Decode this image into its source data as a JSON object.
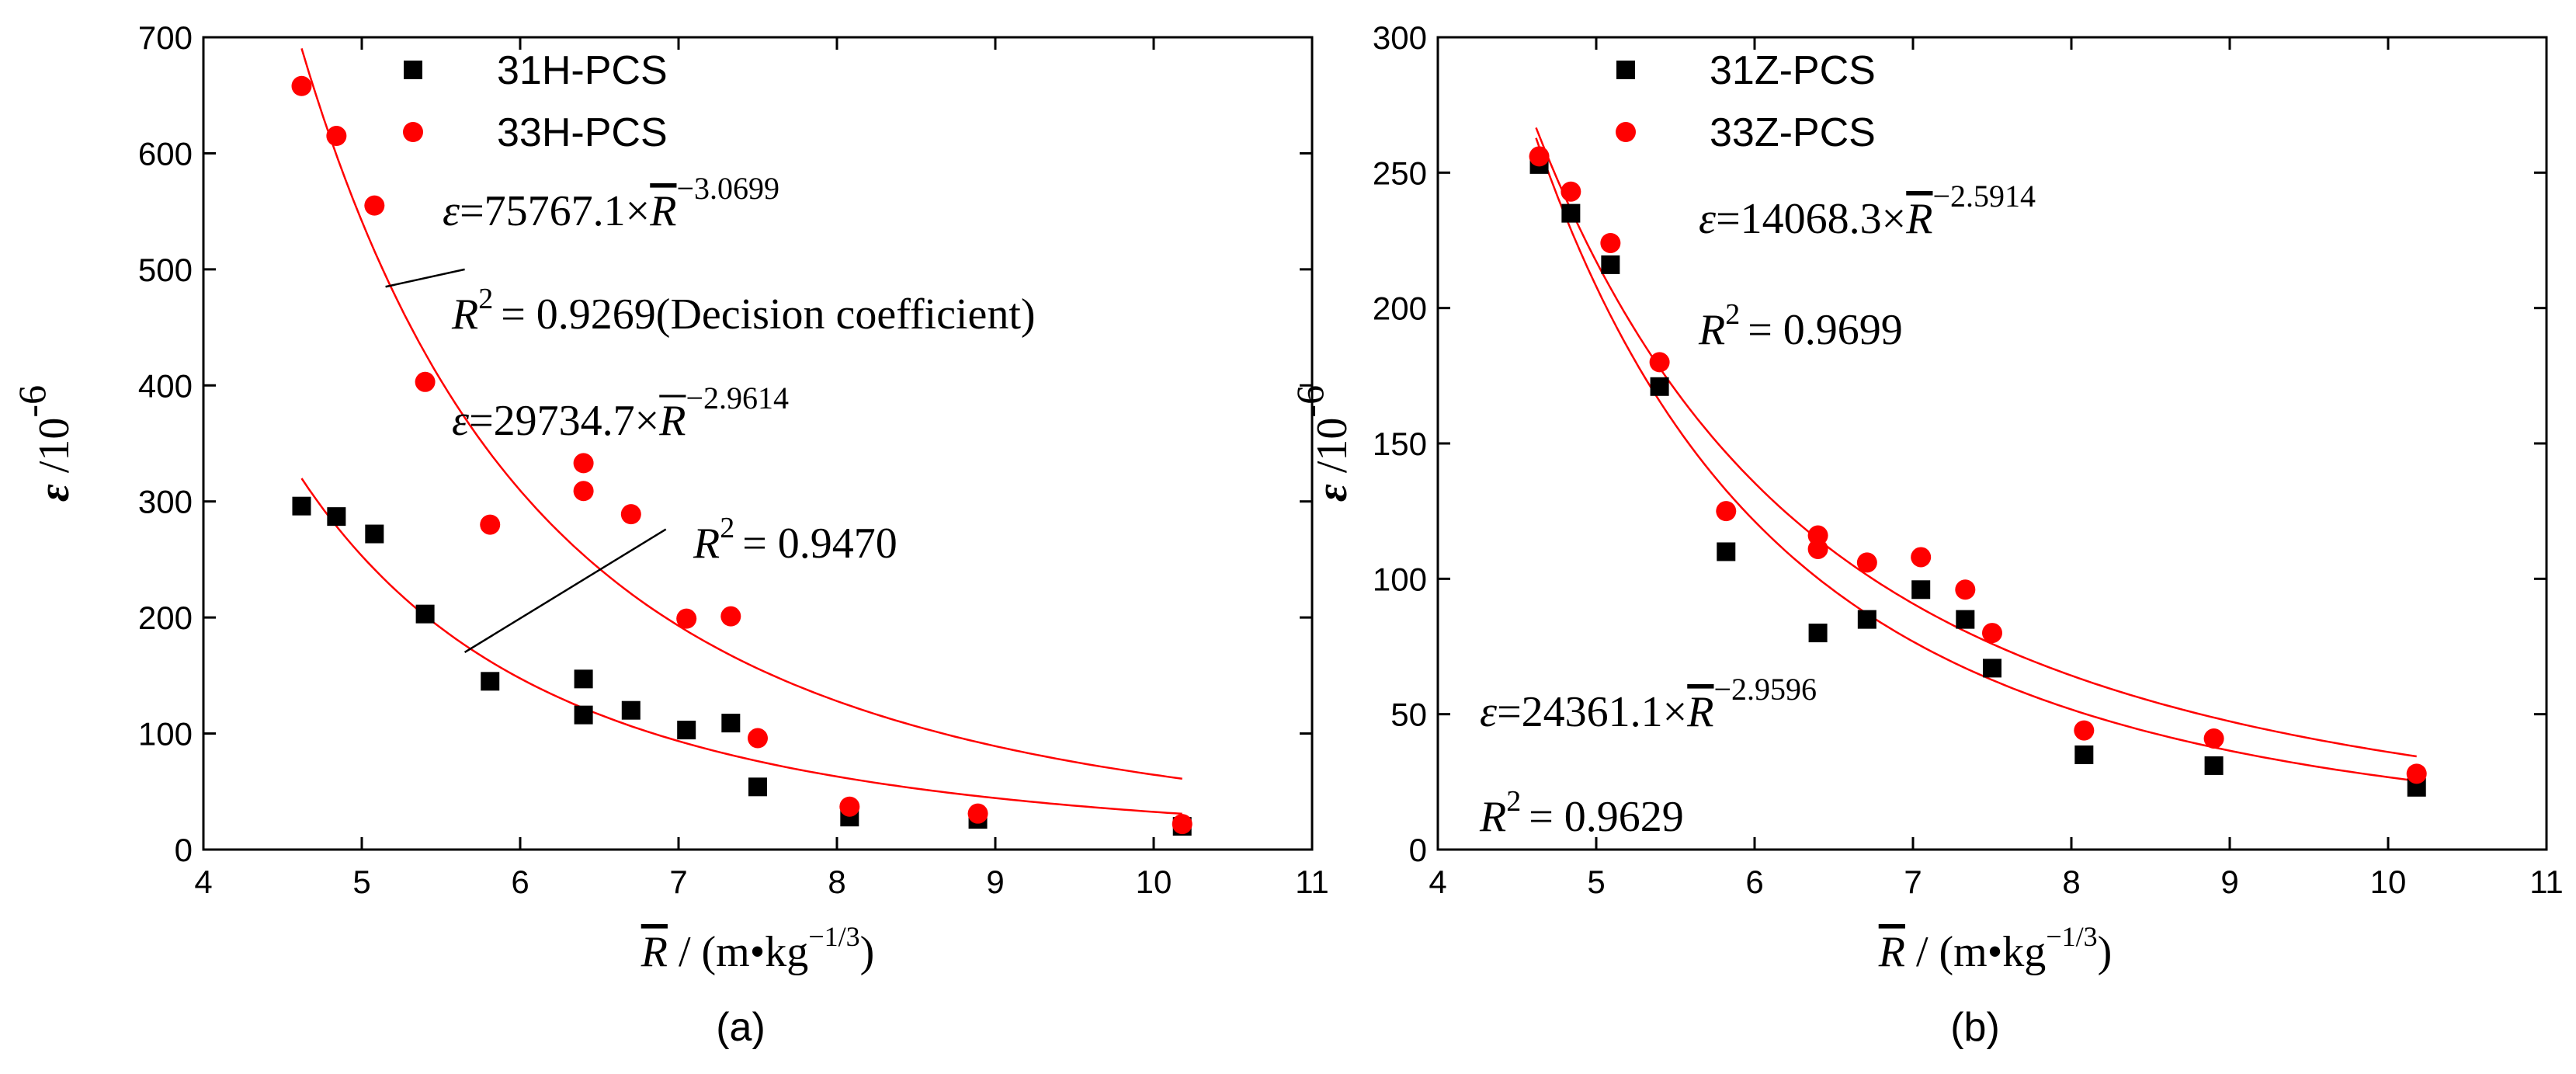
{
  "chart_data": [
    {
      "type": "scatter",
      "panel_label": "(a)",
      "xlabel": {
        "symbol": "R",
        "unit": " / (m•kg",
        "exp": "−1/3",
        "close": ")"
      },
      "ylabel": {
        "symbol": "ε",
        "unit": " /10",
        "exp": "-6"
      },
      "xlim": [
        4,
        11
      ],
      "ylim": [
        0,
        700
      ],
      "xticks": [
        4,
        5,
        6,
        7,
        8,
        9,
        10,
        11
      ],
      "yticks": [
        0,
        100,
        200,
        300,
        400,
        500,
        600,
        700
      ],
      "legend_position": "top-left",
      "series": [
        {
          "name": "31H-PCS",
          "color": "#000000",
          "marker": "square",
          "x": [
            4.62,
            4.84,
            5.08,
            5.4,
            5.81,
            6.4,
            6.4,
            6.7,
            7.05,
            7.33,
            7.5,
            8.08,
            8.89,
            10.18
          ],
          "y": [
            296,
            287,
            272,
            203,
            145,
            147,
            116,
            120,
            103,
            109,
            54,
            28,
            26,
            20
          ]
        },
        {
          "name": "33H-PCS",
          "color": "#ff0000",
          "marker": "circle",
          "x": [
            4.62,
            4.84,
            5.08,
            5.4,
            5.81,
            6.4,
            6.4,
            6.7,
            7.05,
            7.33,
            7.5,
            8.08,
            8.89,
            10.18
          ],
          "y": [
            658,
            615,
            555,
            403,
            280,
            333,
            309,
            289,
            199,
            201,
            96,
            37,
            31,
            22
          ]
        }
      ],
      "fits": [
        {
          "coef": 75767.1,
          "power": -3.0699,
          "color": "#ff0000",
          "x_range": [
            4.62,
            10.18
          ],
          "coef_text": "ε=75767.1×",
          "power_text": "−3.0699",
          "r2_text": "= 0.9269(Decision coefficient)"
        },
        {
          "coef": 29734.7,
          "power": -2.9614,
          "color": "#ff0000",
          "x_range": [
            4.62,
            10.18
          ],
          "coef_text": "ε=29734.7×",
          "power_text": "−2.9614",
          "r2_text": "= 0.9470"
        }
      ],
      "annotation_lines": [
        {
          "from": [
            5.65,
            500
          ],
          "to": [
            5.15,
            485
          ]
        },
        {
          "from": [
            5.65,
            170
          ],
          "to": [
            6.92,
            276
          ]
        }
      ]
    },
    {
      "type": "scatter",
      "panel_label": "(b)",
      "xlabel": {
        "symbol": "R",
        "unit": " / (m•kg",
        "exp": "−1/3",
        "close": ")"
      },
      "ylabel": {
        "symbol": "ε",
        "unit": " /10",
        "exp": "-6"
      },
      "xlim": [
        4,
        11
      ],
      "ylim": [
        0,
        300
      ],
      "xticks": [
        4,
        5,
        6,
        7,
        8,
        9,
        10,
        11
      ],
      "yticks": [
        0,
        50,
        100,
        150,
        200,
        250,
        300
      ],
      "legend_position": "top-left",
      "series": [
        {
          "name": "31Z-PCS",
          "color": "#000000",
          "marker": "square",
          "x": [
            4.64,
            4.84,
            5.09,
            5.4,
            5.82,
            6.4,
            6.71,
            7.05,
            7.33,
            7.5,
            8.08,
            8.9,
            10.18
          ],
          "y": [
            253,
            235,
            216,
            171,
            110,
            80,
            85,
            96,
            85,
            67,
            35,
            31,
            23
          ]
        },
        {
          "name": "33Z-PCS",
          "color": "#ff0000",
          "marker": "circle",
          "x": [
            4.64,
            4.84,
            5.09,
            5.4,
            5.82,
            6.4,
            6.4,
            6.71,
            7.05,
            7.33,
            7.5,
            8.08,
            8.9,
            10.18
          ],
          "y": [
            256,
            243,
            224,
            180,
            125,
            116,
            111,
            106,
            108,
            96,
            80,
            44,
            41,
            28
          ]
        }
      ],
      "fits": [
        {
          "coef": 14068.3,
          "power": -2.5914,
          "color": "#ff0000",
          "x_range": [
            4.62,
            10.18
          ],
          "coef_text": "ε=14068.3×",
          "power_text": "−2.5914",
          "r2_text": "= 0.9699"
        },
        {
          "coef": 24361.1,
          "power": -2.9596,
          "color": "#ff0000",
          "x_range": [
            4.62,
            10.18
          ],
          "coef_text": "ε=24361.1×",
          "power_text": "−2.9596",
          "r2_text": "= 0.9629"
        }
      ],
      "annotation_lines": []
    }
  ],
  "r_symbol": "R",
  "r2_symbol": "R",
  "r2_sup": "2"
}
